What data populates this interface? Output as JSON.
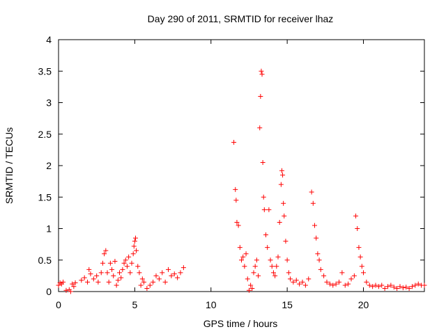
{
  "chart_data": {
    "type": "scatter",
    "title": "Day 290 of 2011, SRMTID for receiver lhaz",
    "xlabel": "GPS time / hours",
    "ylabel": "SRMTID / TECUs",
    "xlim": [
      0,
      24
    ],
    "ylim": [
      0,
      4
    ],
    "x_ticks": [
      0,
      5,
      10,
      15,
      20
    ],
    "y_ticks": [
      0,
      0.5,
      1,
      1.5,
      2,
      2.5,
      3,
      3.5,
      4
    ],
    "y_tick_labels": [
      "0",
      "0.5",
      "1",
      "1.5",
      "2",
      "2.5",
      "3",
      "3.5",
      "4"
    ],
    "grid": false,
    "marker": "+",
    "marker_color": "#ff0000",
    "series": [
      {
        "points": [
          [
            0.0,
            0.1
          ],
          [
            0.1,
            0.14
          ],
          [
            0.2,
            0.12
          ],
          [
            0.3,
            0.15
          ],
          [
            0.5,
            0.02
          ],
          [
            0.7,
            0.03
          ],
          [
            0.8,
            0.0
          ],
          [
            0.9,
            0.12
          ],
          [
            1.0,
            0.08
          ],
          [
            1.1,
            0.14
          ],
          [
            1.5,
            0.18
          ],
          [
            1.7,
            0.22
          ],
          [
            1.9,
            0.15
          ],
          [
            2.0,
            0.35
          ],
          [
            2.1,
            0.28
          ],
          [
            2.3,
            0.2
          ],
          [
            2.5,
            0.25
          ],
          [
            2.6,
            0.15
          ],
          [
            2.8,
            0.3
          ],
          [
            2.9,
            0.45
          ],
          [
            3.0,
            0.6
          ],
          [
            3.1,
            0.65
          ],
          [
            3.2,
            0.3
          ],
          [
            3.3,
            0.15
          ],
          [
            3.4,
            0.45
          ],
          [
            3.5,
            0.35
          ],
          [
            3.6,
            0.25
          ],
          [
            3.7,
            0.48
          ],
          [
            3.8,
            0.1
          ],
          [
            3.9,
            0.18
          ],
          [
            4.0,
            0.3
          ],
          [
            4.1,
            0.22
          ],
          [
            4.2,
            0.35
          ],
          [
            4.3,
            0.45
          ],
          [
            4.4,
            0.5
          ],
          [
            4.5,
            0.4
          ],
          [
            4.6,
            0.55
          ],
          [
            4.7,
            0.3
          ],
          [
            4.8,
            0.45
          ],
          [
            4.9,
            0.6
          ],
          [
            4.95,
            0.72
          ],
          [
            5.0,
            0.8
          ],
          [
            5.05,
            0.85
          ],
          [
            5.1,
            0.65
          ],
          [
            5.2,
            0.4
          ],
          [
            5.3,
            0.3
          ],
          [
            5.4,
            0.1
          ],
          [
            5.5,
            0.2
          ],
          [
            5.6,
            0.15
          ],
          [
            5.8,
            0.05
          ],
          [
            6.0,
            0.1
          ],
          [
            6.2,
            0.15
          ],
          [
            6.4,
            0.25
          ],
          [
            6.6,
            0.2
          ],
          [
            6.8,
            0.3
          ],
          [
            7.0,
            0.15
          ],
          [
            7.2,
            0.35
          ],
          [
            7.4,
            0.25
          ],
          [
            7.6,
            0.28
          ],
          [
            7.8,
            0.22
          ],
          [
            8.0,
            0.3
          ],
          [
            8.2,
            0.38
          ],
          [
            11.5,
            2.37
          ],
          [
            11.6,
            1.62
          ],
          [
            11.65,
            1.45
          ],
          [
            11.7,
            1.1
          ],
          [
            11.8,
            1.05
          ],
          [
            11.9,
            0.7
          ],
          [
            12.0,
            0.5
          ],
          [
            12.1,
            0.55
          ],
          [
            12.2,
            0.4
          ],
          [
            12.3,
            0.6
          ],
          [
            12.4,
            0.2
          ],
          [
            12.5,
            0.02
          ],
          [
            12.6,
            0.1
          ],
          [
            12.7,
            0.05
          ],
          [
            12.8,
            0.3
          ],
          [
            12.9,
            0.4
          ],
          [
            13.0,
            0.5
          ],
          [
            13.1,
            0.25
          ],
          [
            13.2,
            2.6
          ],
          [
            13.25,
            3.1
          ],
          [
            13.3,
            3.5
          ],
          [
            13.35,
            3.45
          ],
          [
            13.4,
            2.05
          ],
          [
            13.45,
            1.5
          ],
          [
            13.5,
            1.3
          ],
          [
            13.6,
            0.9
          ],
          [
            13.7,
            0.7
          ],
          [
            13.8,
            1.3
          ],
          [
            13.9,
            0.5
          ],
          [
            14.0,
            0.4
          ],
          [
            14.1,
            0.3
          ],
          [
            14.2,
            0.25
          ],
          [
            14.3,
            0.4
          ],
          [
            14.4,
            0.55
          ],
          [
            14.5,
            1.1
          ],
          [
            14.6,
            1.7
          ],
          [
            14.65,
            1.92
          ],
          [
            14.7,
            1.85
          ],
          [
            14.75,
            1.4
          ],
          [
            14.8,
            1.2
          ],
          [
            14.9,
            0.8
          ],
          [
            15.0,
            0.5
          ],
          [
            15.1,
            0.3
          ],
          [
            15.2,
            0.2
          ],
          [
            15.4,
            0.15
          ],
          [
            15.6,
            0.18
          ],
          [
            15.8,
            0.12
          ],
          [
            16.0,
            0.15
          ],
          [
            16.2,
            0.1
          ],
          [
            16.4,
            0.2
          ],
          [
            16.6,
            1.58
          ],
          [
            16.7,
            1.4
          ],
          [
            16.8,
            1.05
          ],
          [
            16.9,
            0.85
          ],
          [
            17.0,
            0.6
          ],
          [
            17.1,
            0.5
          ],
          [
            17.2,
            0.35
          ],
          [
            17.4,
            0.25
          ],
          [
            17.6,
            0.15
          ],
          [
            17.8,
            0.12
          ],
          [
            18.0,
            0.1
          ],
          [
            18.2,
            0.12
          ],
          [
            18.4,
            0.15
          ],
          [
            18.6,
            0.3
          ],
          [
            18.8,
            0.1
          ],
          [
            19.0,
            0.12
          ],
          [
            19.2,
            0.2
          ],
          [
            19.4,
            0.25
          ],
          [
            19.5,
            1.2
          ],
          [
            19.6,
            1.0
          ],
          [
            19.7,
            0.7
          ],
          [
            19.8,
            0.55
          ],
          [
            19.9,
            0.4
          ],
          [
            20.0,
            0.3
          ],
          [
            20.2,
            0.15
          ],
          [
            20.4,
            0.1
          ],
          [
            20.6,
            0.08
          ],
          [
            20.8,
            0.1
          ],
          [
            21.0,
            0.08
          ],
          [
            21.2,
            0.1
          ],
          [
            21.4,
            0.05
          ],
          [
            21.6,
            0.08
          ],
          [
            21.8,
            0.1
          ],
          [
            22.0,
            0.07
          ],
          [
            22.2,
            0.05
          ],
          [
            22.4,
            0.08
          ],
          [
            22.6,
            0.06
          ],
          [
            22.8,
            0.07
          ],
          [
            23.0,
            0.05
          ],
          [
            23.2,
            0.08
          ],
          [
            23.4,
            0.1
          ],
          [
            23.6,
            0.12
          ],
          [
            23.8,
            0.1
          ],
          [
            24.0,
            0.1
          ]
        ]
      }
    ]
  }
}
